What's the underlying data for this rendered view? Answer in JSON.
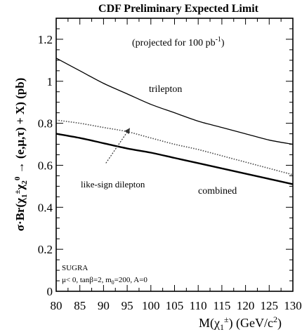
{
  "chart_data": {
    "type": "line",
    "title": "CDF Preliminary Expected Limit",
    "subtitle": "(projected for 100 pb",
    "subtitle_sup": "-1",
    "subtitle_end": ")",
    "ylabel": {
      "prefix": "σ·Br(",
      "chi": "χ",
      "sub1": "1",
      "sup1": "±",
      "sub2": "2",
      "sup2": "0",
      "suffix": " → (e,μ,τ) + X) (pb)"
    },
    "xlabel": {
      "prefix": "M(",
      "chi": "χ",
      "sub": "1",
      "sup": "±",
      "suffix": ") (GeV/c",
      "sup2": "2",
      "end": ")"
    },
    "xlim": [
      80,
      130
    ],
    "ylim": [
      0,
      1.3
    ],
    "x_ticks": [
      80,
      85,
      90,
      95,
      100,
      105,
      110,
      115,
      120,
      125,
      130
    ],
    "x_tick_labels": [
      "80",
      "85",
      "90",
      "95",
      "100",
      "105",
      "110",
      "115",
      "120",
      "125",
      "130"
    ],
    "y_ticks": [
      0,
      0.2,
      0.4,
      0.6,
      0.8,
      1.0,
      1.2
    ],
    "y_tick_labels": [
      "0",
      "0.2",
      "0.4",
      "0.6",
      "0.8",
      "1",
      "1.2"
    ],
    "grid": false,
    "series": [
      {
        "name": "trilepton",
        "style": "solid-thin",
        "color": "#000000",
        "x": [
          80,
          85,
          90,
          95,
          100,
          105,
          110,
          115,
          120,
          125,
          130
        ],
        "y": [
          1.11,
          1.05,
          0.99,
          0.94,
          0.89,
          0.85,
          0.81,
          0.78,
          0.75,
          0.72,
          0.7
        ]
      },
      {
        "name": "like-sign dilepton",
        "style": "dotted",
        "color": "#000000",
        "x": [
          80,
          85,
          90,
          95,
          100,
          105,
          110,
          115,
          120,
          125,
          130
        ],
        "y": [
          0.815,
          0.8,
          0.78,
          0.76,
          0.73,
          0.7,
          0.675,
          0.645,
          0.615,
          0.585,
          0.555
        ]
      },
      {
        "name": "combined",
        "style": "solid-thick",
        "color": "#000000",
        "x": [
          80,
          85,
          90,
          95,
          100,
          105,
          110,
          115,
          120,
          125,
          130
        ],
        "y": [
          0.75,
          0.73,
          0.705,
          0.68,
          0.66,
          0.635,
          0.61,
          0.585,
          0.56,
          0.535,
          0.51
        ]
      }
    ],
    "annotations": {
      "trilepton_label": "trilepton",
      "dilepton_label": "like-sign dilepton",
      "combined_label": "combined",
      "sugra_title": "SUGRA",
      "sugra_params": "μ< 0, tanβ=2, m",
      "sugra_params_sub": "0",
      "sugra_params_end": "=200, A=0"
    },
    "arrow": {
      "from": [
        90.5,
        0.61
      ],
      "to": [
        95.5,
        0.775
      ]
    }
  }
}
